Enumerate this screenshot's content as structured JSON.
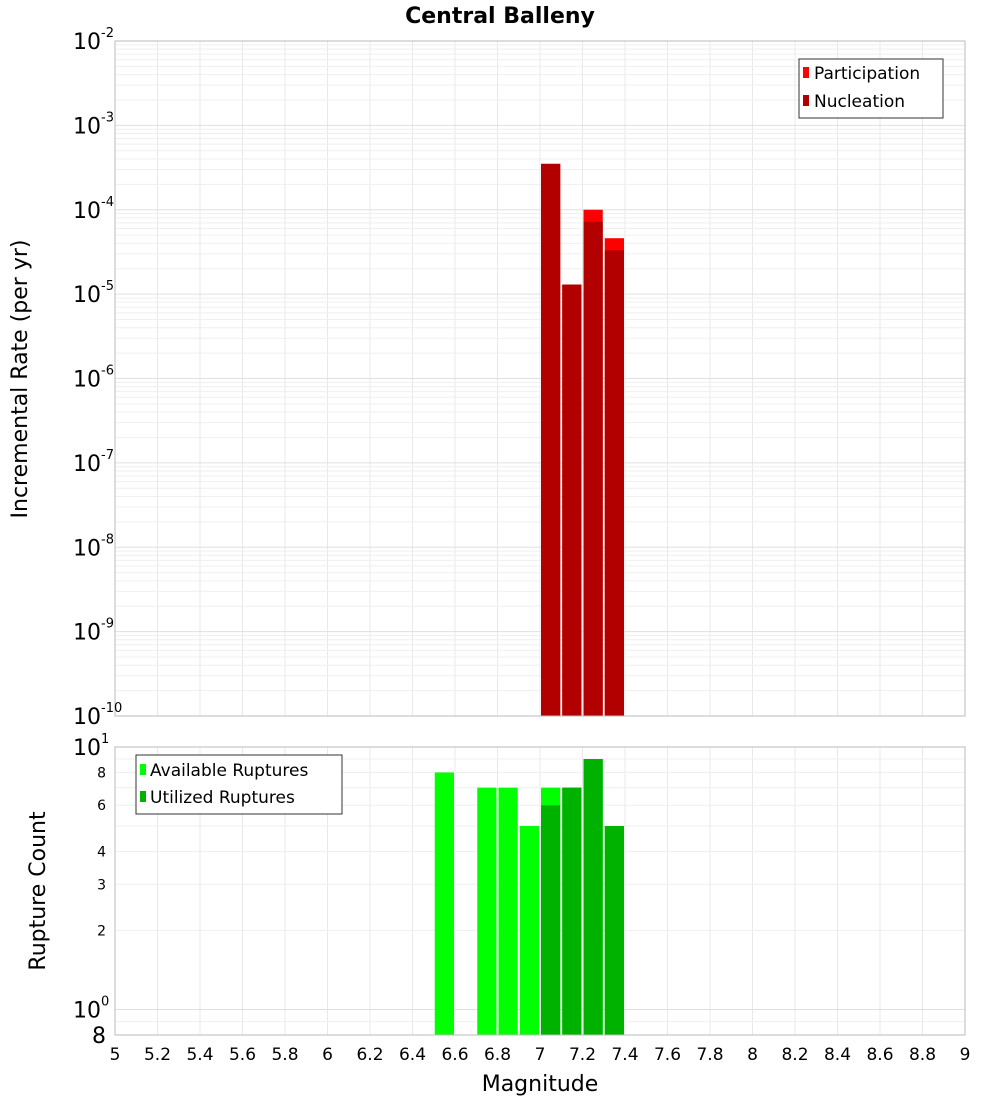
{
  "chart_data": [
    {
      "type": "bar",
      "title": "Central Balleny",
      "xlabel": "",
      "ylabel": "Incremental Rate (per yr)",
      "yscale": "log",
      "xlim": [
        5,
        9
      ],
      "ylim": [
        1e-10,
        0.01
      ],
      "y_tick_labels": [
        {
          "base": "10",
          "exp": "-10"
        },
        {
          "base": "10",
          "exp": "-9"
        },
        {
          "base": "10",
          "exp": "-8"
        },
        {
          "base": "10",
          "exp": "-7"
        },
        {
          "base": "10",
          "exp": "-6"
        },
        {
          "base": "10",
          "exp": "-5"
        },
        {
          "base": "10",
          "exp": "-4"
        },
        {
          "base": "10",
          "exp": "-3"
        },
        {
          "base": "10",
          "exp": "-2"
        }
      ],
      "grid": true,
      "legend_position": "top-right",
      "bar_width": 0.1,
      "series": [
        {
          "name": "Participation",
          "color": "#ff0000",
          "x": [
            7.05,
            7.15,
            7.25,
            7.35
          ],
          "values": [
            0.00035,
            1.3e-05,
            0.0001,
            4.6e-05
          ]
        },
        {
          "name": "Nucleation",
          "color": "#b20000",
          "x": [
            7.05,
            7.15,
            7.25,
            7.35
          ],
          "values": [
            0.00035,
            1.3e-05,
            7.2e-05,
            3.3e-05
          ]
        }
      ]
    },
    {
      "type": "bar",
      "title": "",
      "xlabel": "Magnitude",
      "ylabel": "Rupture Count",
      "yscale": "log",
      "xlim": [
        5,
        9
      ],
      "ylim": [
        0.8,
        10
      ],
      "x_ticks": [
        "5",
        "5.2",
        "5.4",
        "5.6",
        "5.8",
        "6",
        "6.2",
        "6.4",
        "6.6",
        "6.8",
        "7",
        "7.2",
        "7.4",
        "7.6",
        "7.8",
        "8",
        "8.2",
        "8.4",
        "8.6",
        "8.8",
        "9"
      ],
      "y_major_tick_labels": [
        {
          "value": 1,
          "base": "10",
          "exp": "0"
        },
        {
          "value": 10,
          "base": "10",
          "exp": "1"
        }
      ],
      "y_minor_tick_labels": [
        {
          "value": 0.8,
          "label": "8"
        },
        {
          "value": 2,
          "label": "2"
        },
        {
          "value": 3,
          "label": "3"
        },
        {
          "value": 4,
          "label": "4"
        },
        {
          "value": 6,
          "label": "6"
        },
        {
          "value": 8,
          "label": "8"
        }
      ],
      "grid": true,
      "legend_position": "top-left",
      "bar_width": 0.1,
      "series": [
        {
          "name": "Available Ruptures",
          "color": "#00ff00",
          "x": [
            6.55,
            6.75,
            6.85,
            6.95,
            7.05,
            7.15,
            7.25,
            7.35
          ],
          "values": [
            8,
            7,
            7,
            5,
            7,
            7,
            9,
            5
          ]
        },
        {
          "name": "Utilized Ruptures",
          "color": "#00b200",
          "x": [
            7.05,
            7.15,
            7.25,
            7.35
          ],
          "values": [
            6,
            7,
            9,
            5
          ]
        }
      ]
    }
  ]
}
